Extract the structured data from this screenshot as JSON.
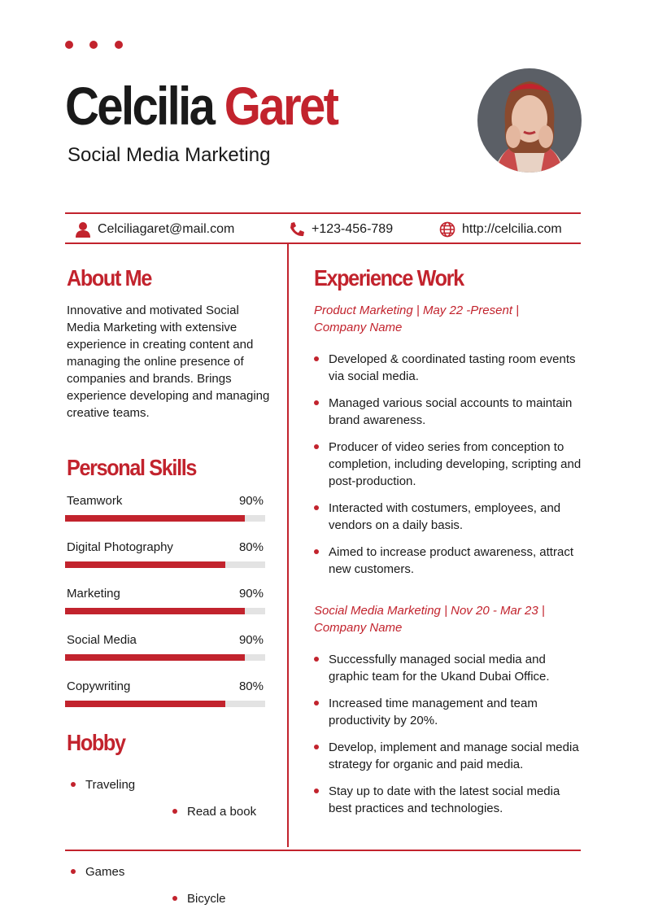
{
  "header": {
    "name_first": "Celcilia",
    "name_last": "Garet",
    "subtitle": "Social Media Marketing"
  },
  "contact": {
    "email": "Celciliagaret@mail.com",
    "phone": "+123-456-789",
    "website": "http://celcilia.com"
  },
  "about": {
    "title": "About Me",
    "text": "Innovative and motivated Social Media Marketing with extensive experience in creating content and managing the online presence of companies and brands. Brings experience developing and managing creative teams."
  },
  "skills": {
    "title": "Personal Skills",
    "items": [
      {
        "name": "Teamwork",
        "percent": 90,
        "percent_label": "90%"
      },
      {
        "name": "Digital Photography",
        "percent": 80,
        "percent_label": "80%"
      },
      {
        "name": "Marketing",
        "percent": 90,
        "percent_label": "90%"
      },
      {
        "name": "Social Media",
        "percent": 90,
        "percent_label": "90%"
      },
      {
        "name": "Copywriting",
        "percent": 80,
        "percent_label": "80%"
      }
    ]
  },
  "hobby": {
    "title": "Hobby",
    "items": [
      "Traveling",
      "Read a book",
      "Games",
      "Bicycle"
    ]
  },
  "experience": {
    "title": "Experience Work",
    "jobs": [
      {
        "heading": "Product Marketing | May 22 -Present | Company Name",
        "bullets": [
          "Developed & coordinated tasting room events via social media.",
          "Managed various social accounts to maintain brand awareness.",
          "Producer of video series from conception to completion, including developing, scripting and post-production.",
          "Interacted with costumers, employees, and vendors on a daily basis.",
          "Aimed to increase product awareness, attract new customers."
        ]
      },
      {
        "heading": "Social Media Marketing | Nov 20 - Mar 23 | Company Name",
        "bullets": [
          "Successfully managed social media and graphic team for the Ukand Dubai Office.",
          "Increased time management and team productivity by 20%.",
          "Develop, implement and manage social media strategy for organic and paid media.",
          "Stay up to date with the latest social media best practices and technologies."
        ]
      }
    ]
  }
}
